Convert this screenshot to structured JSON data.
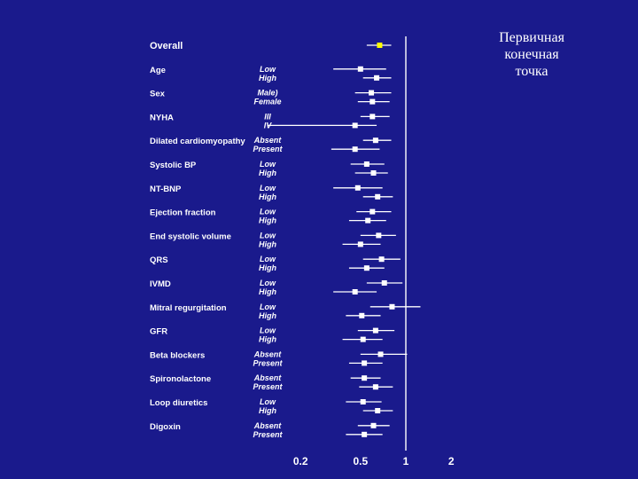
{
  "slide": {
    "title_lines": [
      "Первичная",
      "конечная",
      "точка"
    ]
  },
  "colors": {
    "background": "#1a1a8c",
    "text": "#ffffff",
    "overall_marker": "#ffff00",
    "marker": "#ffffff"
  },
  "chart_data": {
    "type": "forest",
    "x_scale": "log",
    "x_ticks": [
      "0.2",
      "0.5",
      "1",
      "2"
    ],
    "x_tick_values": [
      0.2,
      0.5,
      1,
      2
    ],
    "reference_line": 1,
    "xlim": [
      0.1,
      2
    ],
    "groups": [
      {
        "name": "Overall",
        "levels": [
          {
            "label": "",
            "estimate": 0.67,
            "ci": [
              0.55,
              0.8
            ]
          }
        ]
      },
      {
        "name": "Age",
        "levels": [
          {
            "label": "Low",
            "estimate": 0.5,
            "ci": [
              0.33,
              0.74
            ]
          },
          {
            "label": "High",
            "estimate": 0.64,
            "ci": [
              0.52,
              0.8
            ]
          }
        ]
      },
      {
        "name": "Sex",
        "levels": [
          {
            "label": "Male)",
            "estimate": 0.59,
            "ci": [
              0.46,
              0.8
            ]
          },
          {
            "label": "Female",
            "estimate": 0.6,
            "ci": [
              0.48,
              0.78
            ]
          }
        ]
      },
      {
        "name": "NYHA",
        "levels": [
          {
            "label": "III",
            "estimate": 0.6,
            "ci": [
              0.5,
              0.78
            ]
          },
          {
            "label": "IV",
            "estimate": 0.46,
            "ci": [
              0.12,
              0.64
            ]
          }
        ]
      },
      {
        "name": "Dilated cardiomyopathy",
        "levels": [
          {
            "label": "Absent",
            "estimate": 0.63,
            "ci": [
              0.52,
              0.8
            ]
          },
          {
            "label": "Present",
            "estimate": 0.46,
            "ci": [
              0.32,
              0.67
            ]
          }
        ]
      },
      {
        "name": "Systolic BP",
        "levels": [
          {
            "label": "Low",
            "estimate": 0.55,
            "ci": [
              0.43,
              0.72
            ]
          },
          {
            "label": "High",
            "estimate": 0.61,
            "ci": [
              0.46,
              0.76
            ]
          }
        ]
      },
      {
        "name": "NT-BNP",
        "levels": [
          {
            "label": "Low",
            "estimate": 0.48,
            "ci": [
              0.33,
              0.7
            ]
          },
          {
            "label": "High",
            "estimate": 0.65,
            "ci": [
              0.52,
              0.82
            ]
          }
        ]
      },
      {
        "name": "Ejection fraction",
        "levels": [
          {
            "label": "Low",
            "estimate": 0.6,
            "ci": [
              0.47,
              0.8
            ]
          },
          {
            "label": "High",
            "estimate": 0.56,
            "ci": [
              0.42,
              0.74
            ]
          }
        ]
      },
      {
        "name": "End systolic volume",
        "levels": [
          {
            "label": "Low",
            "estimate": 0.66,
            "ci": [
              0.5,
              0.86
            ]
          },
          {
            "label": "High",
            "estimate": 0.5,
            "ci": [
              0.38,
              0.68
            ]
          }
        ]
      },
      {
        "name": "QRS",
        "levels": [
          {
            "label": "Low",
            "estimate": 0.69,
            "ci": [
              0.52,
              0.92
            ]
          },
          {
            "label": "High",
            "estimate": 0.55,
            "ci": [
              0.42,
              0.72
            ]
          }
        ]
      },
      {
        "name": "IVMD",
        "levels": [
          {
            "label": "Low",
            "estimate": 0.72,
            "ci": [
              0.55,
              0.95
            ]
          },
          {
            "label": "High",
            "estimate": 0.46,
            "ci": [
              0.33,
              0.64
            ]
          }
        ]
      },
      {
        "name": "Mitral regurgitation",
        "levels": [
          {
            "label": "Low",
            "estimate": 0.81,
            "ci": [
              0.58,
              1.25
            ]
          },
          {
            "label": "High",
            "estimate": 0.51,
            "ci": [
              0.4,
              0.68
            ]
          }
        ]
      },
      {
        "name": "GFR",
        "levels": [
          {
            "label": "Low",
            "estimate": 0.63,
            "ci": [
              0.48,
              0.84
            ]
          },
          {
            "label": "High",
            "estimate": 0.52,
            "ci": [
              0.38,
              0.7
            ]
          }
        ]
      },
      {
        "name": "Beta blockers",
        "levels": [
          {
            "label": "Absent",
            "estimate": 0.68,
            "ci": [
              0.5,
              1.02
            ]
          },
          {
            "label": "Present",
            "estimate": 0.53,
            "ci": [
              0.42,
              0.7
            ]
          }
        ]
      },
      {
        "name": "Spironolactone",
        "levels": [
          {
            "label": "Absent",
            "estimate": 0.53,
            "ci": [
              0.43,
              0.68
            ]
          },
          {
            "label": "Present",
            "estimate": 0.63,
            "ci": [
              0.49,
              0.82
            ]
          }
        ]
      },
      {
        "name": "Loop diuretics",
        "levels": [
          {
            "label": "Low",
            "estimate": 0.52,
            "ci": [
              0.4,
              0.69
            ]
          },
          {
            "label": "High",
            "estimate": 0.65,
            "ci": [
              0.52,
              0.82
            ]
          }
        ]
      },
      {
        "name": "Digoxin",
        "levels": [
          {
            "label": "Absent",
            "estimate": 0.61,
            "ci": [
              0.48,
              0.78
            ]
          },
          {
            "label": "Present",
            "estimate": 0.53,
            "ci": [
              0.4,
              0.7
            ]
          }
        ]
      }
    ]
  }
}
